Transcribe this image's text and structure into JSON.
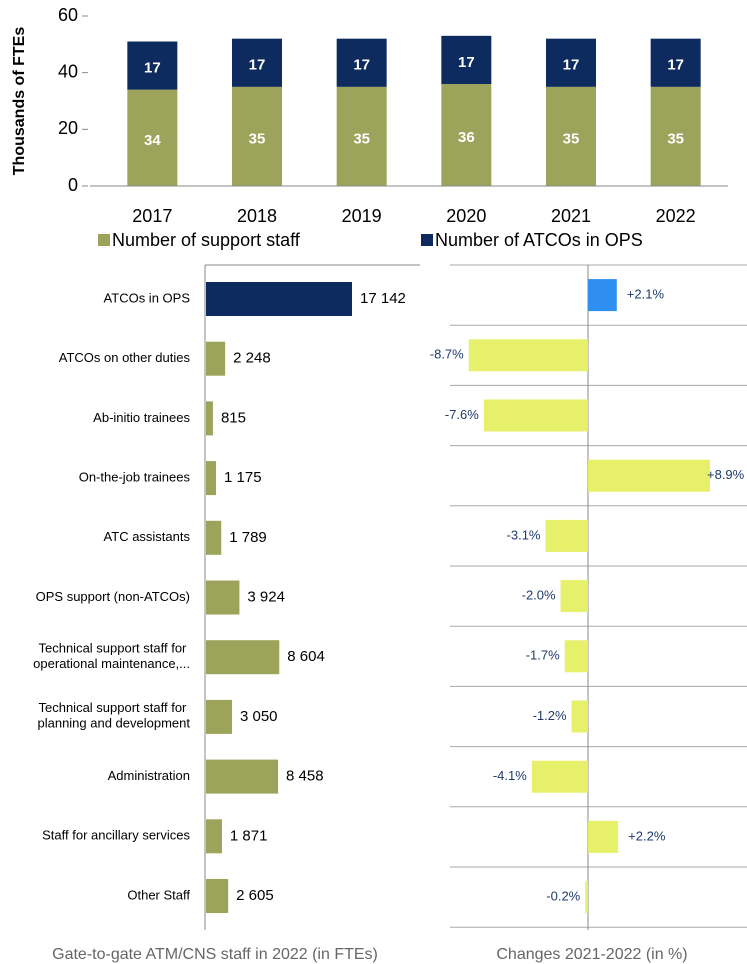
{
  "chart_data": [
    {
      "type": "bar",
      "stacked": true,
      "y_label": "Thousands of FTEs",
      "categories": [
        "2017",
        "2018",
        "2019",
        "2020",
        "2021",
        "2022"
      ],
      "series": [
        {
          "name": "Number of support staff",
          "color": "#9ca35a",
          "values": [
            34,
            35,
            35,
            36,
            35,
            35
          ]
        },
        {
          "name": "Number of ATCOs in OPS",
          "color": "#0d2b5e",
          "values": [
            17,
            17,
            17,
            17,
            17,
            17
          ]
        }
      ],
      "ylim": [
        0,
        60
      ],
      "yticks": [
        0,
        20,
        40,
        60
      ],
      "legend": "bottom"
    },
    {
      "type": "barh",
      "title": "Gate-to-gate ATM/CNS staff in 2022 (in FTEs)",
      "categories": [
        "ATCOs in OPS",
        "ATCOs on other duties",
        "Ab-initio trainees",
        "On-the-job trainees",
        "ATC assistants",
        "OPS support (non-ATCOs)",
        "Technical support staff for operational maintenance,...",
        "Technical support staff for planning and development",
        "Administration",
        "Staff for ancillary services",
        "Other Staff"
      ],
      "values": [
        17142,
        2248,
        815,
        1175,
        1789,
        3924,
        8604,
        3050,
        8458,
        1871,
        2605
      ],
      "value_labels": [
        "17 142",
        "2 248",
        "815",
        "1 175",
        "1 789",
        "3 924",
        "8 604",
        "3 050",
        "8 458",
        "1 871",
        "2 605"
      ],
      "colors": [
        "#0d2b5e",
        "#9ca35a",
        "#9ca35a",
        "#9ca35a",
        "#9ca35a",
        "#9ca35a",
        "#9ca35a",
        "#9ca35a",
        "#9ca35a",
        "#9ca35a",
        "#9ca35a"
      ]
    },
    {
      "type": "barh",
      "title": "Changes 2021-2022 (in %)",
      "values": [
        2.1,
        -8.7,
        -7.6,
        8.9,
        -3.1,
        -2.0,
        -1.7,
        -1.2,
        -4.1,
        2.2,
        -0.2
      ],
      "value_labels": [
        "+2.1%",
        "-8.7%",
        "-7.6%",
        "+8.9%",
        "-3.1%",
        "-2.0%",
        "-1.7%",
        "-1.2%",
        "-4.1%",
        "+2.2%",
        "-0.2%"
      ],
      "colors": [
        "#2e8ff0",
        "#e6f06a",
        "#e6f06a",
        "#e6f06a",
        "#e6f06a",
        "#e6f06a",
        "#e6f06a",
        "#e6f06a",
        "#e6f06a",
        "#e6f06a",
        "#e6f06a"
      ]
    }
  ]
}
